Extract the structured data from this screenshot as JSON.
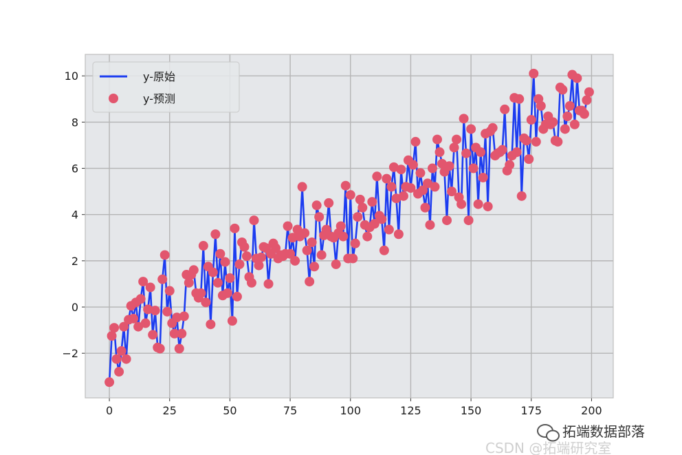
{
  "chart_data": {
    "type": "line",
    "title": "",
    "xlabel": "",
    "ylabel": "",
    "xlim": [
      -10,
      209
    ],
    "ylim": [
      -3.93,
      10.93
    ],
    "xticks": [
      0,
      25,
      50,
      75,
      100,
      125,
      150,
      175,
      200
    ],
    "yticks": [
      -2,
      0,
      2,
      4,
      6,
      8,
      10
    ],
    "xtick_labels": [
      "0",
      "25",
      "50",
      "75",
      "100",
      "125",
      "150",
      "175",
      "200"
    ],
    "ytick_labels": [
      "−2",
      "0",
      "2",
      "4",
      "6",
      "8",
      "10"
    ],
    "grid": true,
    "legend_placement": "top-left",
    "background_color": "#e5e7ea",
    "series": [
      {
        "name": "y-原始",
        "style": "line",
        "color": "#1c3cf0"
      },
      {
        "name": "y-预测",
        "style": "markers",
        "color": "#e2566e"
      }
    ],
    "values": [
      -3.25,
      -1.25,
      -0.9,
      -2.25,
      -2.8,
      -1.9,
      -0.85,
      -2.25,
      -0.55,
      0.05,
      -0.5,
      0.2,
      -0.85,
      0.35,
      1.1,
      -0.7,
      -0.1,
      0.85,
      -1.2,
      -0.15,
      -1.75,
      -1.8,
      1.2,
      2.25,
      -0.2,
      0.7,
      -0.7,
      -1.15,
      -0.45,
      -1.8,
      -1.15,
      -0.4,
      1.4,
      1.05,
      1.4,
      1.6,
      0.6,
      0.4,
      0.6,
      2.65,
      0.2,
      1.75,
      -0.75,
      1.5,
      3.15,
      1.05,
      2.3,
      0.5,
      1.95,
      0.6,
      1.25,
      -0.6,
      3.4,
      0.45,
      1.85,
      2.8,
      2.6,
      2.2,
      1.3,
      1.05,
      3.75,
      2.1,
      1.8,
      2.15,
      2.6,
      2.55,
      1.0,
      2.3,
      2.75,
      2.55,
      2.1,
      2.25,
      2.2,
      2.3,
      3.5,
      2.3,
      3.0,
      2.0,
      3.35,
      3.05,
      5.2,
      3.2,
      2.45,
      1.1,
      2.8,
      1.75,
      4.4,
      3.9,
      2.25,
      3.1,
      3.35,
      4.5,
      3.05,
      3.0,
      1.85,
      3.2,
      3.5,
      3.05,
      5.25,
      2.1,
      4.85,
      2.1,
      2.75,
      3.9,
      4.65,
      4.3,
      3.55,
      3.05,
      3.45,
      4.55,
      3.6,
      5.65,
      3.95,
      3.8,
      2.45,
      5.55,
      3.35,
      5.2,
      6.05,
      4.7,
      3.15,
      5.95,
      4.8,
      5.2,
      6.35,
      5.15,
      6.15,
      7.15,
      4.9,
      5.8,
      5.05,
      4.3,
      5.35,
      3.55,
      6.0,
      5.2,
      7.25,
      6.7,
      6.2,
      5.85,
      3.75,
      6.1,
      5.0,
      6.9,
      7.25,
      4.75,
      4.45,
      8.15,
      6.65,
      3.75,
      7.7,
      6.0,
      6.9,
      4.45,
      6.7,
      5.6,
      7.5,
      4.35,
      7.6,
      7.75,
      6.55,
      6.65,
      6.7,
      6.8,
      8.55,
      5.9,
      6.15,
      6.55,
      9.05,
      6.7,
      9.0,
      4.8,
      7.3,
      7.2,
      6.4,
      8.1,
      10.1,
      7.15,
      9.0,
      8.7,
      7.7,
      7.9,
      8.25,
      7.9,
      8.0,
      7.2,
      7.15,
      9.5,
      9.4,
      7.7,
      8.25,
      8.7,
      10.05,
      7.9,
      9.9,
      8.5,
      8.5,
      8.35,
      8.95,
      9.3
    ]
  },
  "watermark": {
    "line1": "拓端数据部落",
    "line2": "CSDN @拓端研究室",
    "icon": "wechat-icon"
  }
}
